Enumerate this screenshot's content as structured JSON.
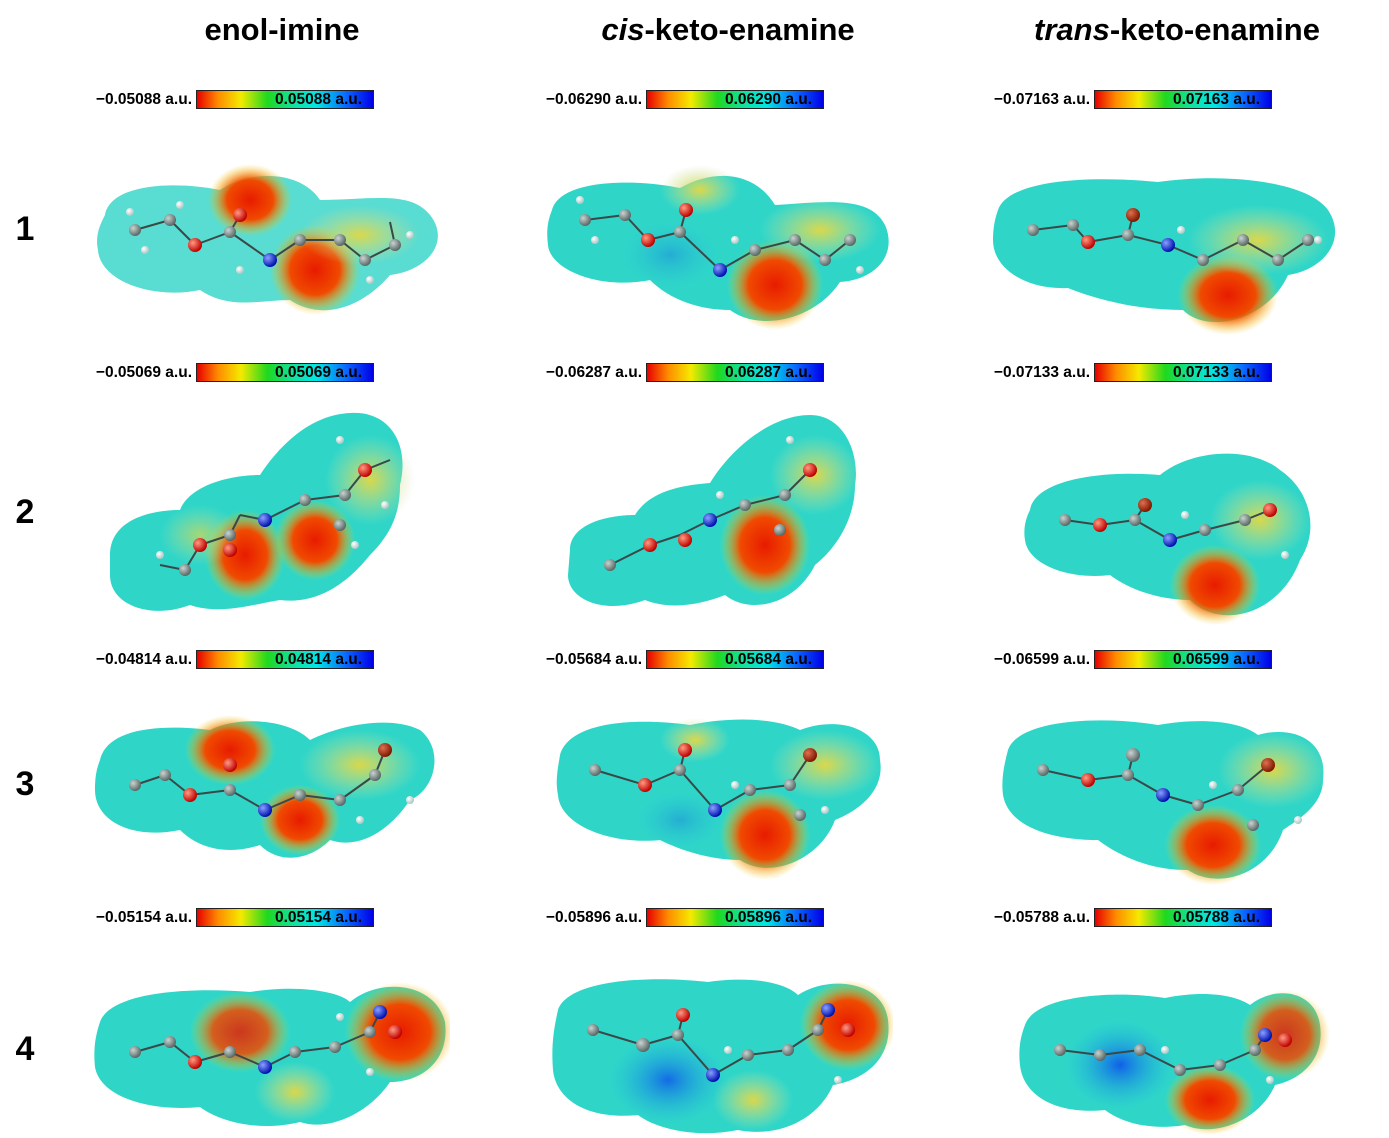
{
  "columns": [
    {
      "prefix": "",
      "italic": "",
      "main": "enol-imine"
    },
    {
      "prefix": "",
      "italic": "cis",
      "main": "-keto-enamine"
    },
    {
      "prefix": "",
      "italic": "trans",
      "main": "-keto-enamine"
    }
  ],
  "rows": [
    {
      "label": "1",
      "scales": [
        {
          "min": "−0.05088 a.u.",
          "max": "0.05088 a.u."
        },
        {
          "min": "−0.06290 a.u.",
          "max": "0.06290 a.u."
        },
        {
          "min": "−0.07163 a.u.",
          "max": "0.07163 a.u."
        }
      ]
    },
    {
      "label": "2",
      "scales": [
        {
          "min": "−0.05069 a.u.",
          "max": "0.05069 a.u."
        },
        {
          "min": "−0.06287 a.u.",
          "max": "0.06287 a.u."
        },
        {
          "min": "−0.07133 a.u.",
          "max": "0.07133 a.u."
        }
      ]
    },
    {
      "label": "3",
      "scales": [
        {
          "min": "−0.04814 a.u.",
          "max": "0.04814 a.u."
        },
        {
          "min": "−0.05684 a.u.",
          "max": "0.05684 a.u."
        },
        {
          "min": "−0.06599 a.u.",
          "max": "0.06599 a.u."
        }
      ]
    },
    {
      "label": "4",
      "scales": [
        {
          "min": "−0.05154 a.u.",
          "max": "0.05154 a.u."
        },
        {
          "min": "−0.05896 a.u.",
          "max": "0.05896 a.u."
        },
        {
          "min": "−0.05788 a.u.",
          "max": "0.05788 a.u."
        }
      ]
    }
  ],
  "colors": {
    "surface": "#2fd6c8",
    "negative": "#e81b00",
    "positive": "#0a3cff",
    "oxygen": "#e00000",
    "nitrogen": "#1020d0",
    "carbon": "#7a8a88",
    "hydrogen": "#e8f4f2",
    "bromine": "#a52a10"
  }
}
